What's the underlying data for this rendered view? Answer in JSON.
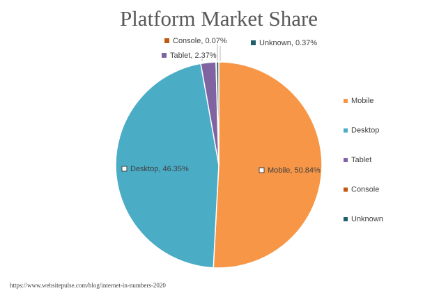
{
  "chart_data": {
    "type": "pie",
    "title": "Platform Market Share",
    "categories": [
      "Mobile",
      "Desktop",
      "Tablet",
      "Console",
      "Unknown"
    ],
    "values": [
      50.84,
      46.35,
      2.37,
      0.07,
      0.37
    ],
    "value_labels": [
      "Mobile, 50.84%",
      "Desktop, 46.35%",
      "Tablet, 2.37%",
      "Console, 0.07%",
      "Unknown, 0.37%"
    ],
    "colors": [
      "#f79646",
      "#4bacc6",
      "#8064a2",
      "#c0580f",
      "#215e6e"
    ],
    "legend": "right",
    "source": "https://www.websitepulse.com/blog/internet-in-numbers-2020"
  }
}
